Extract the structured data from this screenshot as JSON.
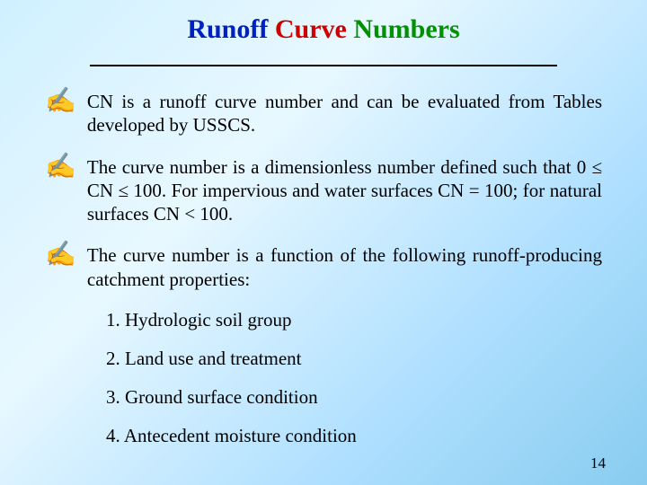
{
  "title": {
    "word1": "Runoff",
    "word2": "Curve",
    "word3": "Numbers"
  },
  "bullets": [
    {
      "text": "CN is a runoff curve number and can be evaluated from Tables developed by USSCS."
    },
    {
      "text": "The curve number is a dimensionless number defined such that 0 ≤ CN ≤ 100. For impervious and water surfaces CN = 100; for natural surfaces CN < 100."
    },
    {
      "text": "The curve number is a function of the following runoff-producing catchment properties:"
    }
  ],
  "numbered": [
    "1. Hydrologic soil group",
    "2. Land use and treatment",
    "3. Ground surface condition",
    "4. Antecedent moisture condition"
  ],
  "pageNumber": "14",
  "colors": {
    "title_word1": "#0020c0",
    "title_word2": "#cc0000",
    "title_word3": "#009000",
    "bullet_icon": "#0020c0"
  }
}
